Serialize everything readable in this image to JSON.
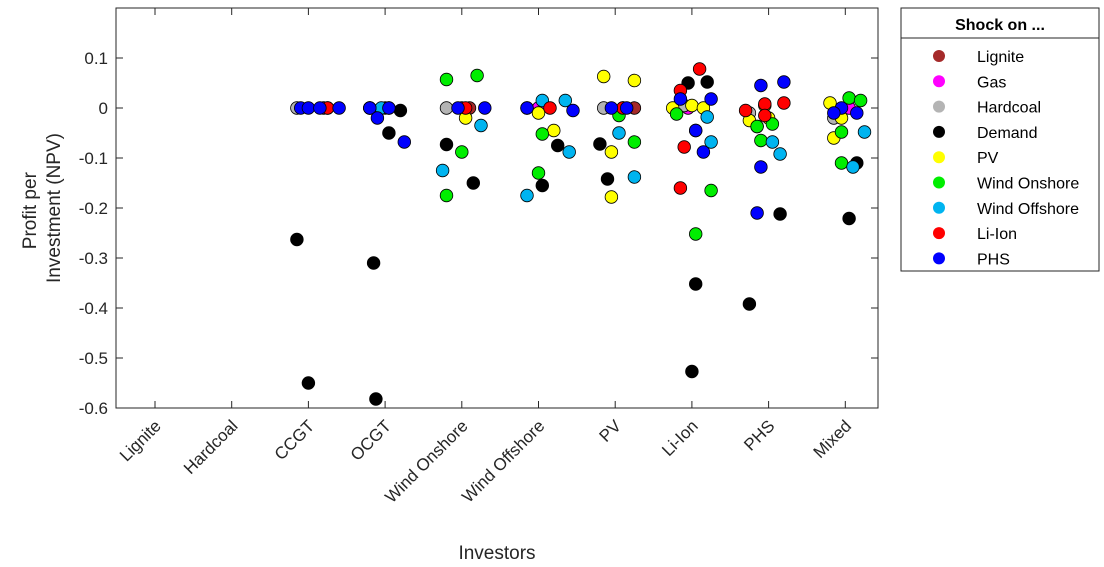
{
  "chart_data": {
    "type": "scatter",
    "xlabel": "Investors",
    "ylabel_lines": [
      "Profit per",
      "Investment (NPV)"
    ],
    "categories": [
      "Lignite",
      "Hardcoal",
      "CCGT",
      "OCGT",
      "Wind Onshore",
      "Wind Offshore",
      "PV",
      "Li-Ion",
      "PHS",
      "Mixed"
    ],
    "ylim": [
      -0.6,
      0.2
    ],
    "yticks": [
      0.1,
      0,
      -0.1,
      -0.2,
      -0.3,
      -0.4,
      -0.5,
      -0.6
    ],
    "ytick_labels": [
      "0.1",
      "0",
      "-0.1",
      "-0.2",
      "-0.3",
      "-0.4",
      "-0.5",
      "-0.6"
    ],
    "grid": false,
    "legend_position": "outside-right",
    "legend": {
      "title": "Shock on ...",
      "entries": [
        {
          "name": "Lignite",
          "color": "#A52A2A"
        },
        {
          "name": "Gas",
          "color": "#FF00FF"
        },
        {
          "name": "Hardcoal",
          "color": "#B4B4B4"
        },
        {
          "name": "Demand",
          "color": "#000000"
        },
        {
          "name": "PV",
          "color": "#FFFF00"
        },
        {
          "name": "Wind Onshore",
          "color": "#00EE00"
        },
        {
          "name": "Wind Offshore",
          "color": "#00B4F0"
        },
        {
          "name": "Li-Ion",
          "color": "#FF0000"
        },
        {
          "name": "PHS",
          "color": "#0000FF"
        }
      ]
    },
    "series": [
      {
        "name": "Lignite",
        "color": "#A52A2A",
        "points": [
          [
            3.25,
            0
          ],
          [
            4.0,
            0
          ],
          [
            5.1,
            0
          ],
          [
            7.25,
            0
          ]
        ]
      },
      {
        "name": "Gas",
        "color": "#FF00FF",
        "points": [
          [
            3.2,
            0
          ],
          [
            5.0,
            0
          ],
          [
            6.0,
            0
          ],
          [
            7.1,
            0
          ],
          [
            7.95,
            0
          ],
          [
            10.05,
            0
          ]
        ]
      },
      {
        "name": "Hardcoal",
        "color": "#B4B4B4",
        "points": [
          [
            2.85,
            0
          ],
          [
            3.8,
            0
          ],
          [
            4.8,
            0
          ],
          [
            5.85,
            0
          ],
          [
            6.85,
            0
          ],
          [
            7.9,
            0.005
          ],
          [
            8.75,
            -0.01
          ],
          [
            9.85,
            -0.02
          ]
        ]
      },
      {
        "name": "Demand",
        "color": "#000000",
        "points": [
          [
            2.85,
            -0.263
          ],
          [
            3.0,
            -0.55
          ],
          [
            3.85,
            -0.31
          ],
          [
            3.88,
            -0.582
          ],
          [
            4.05,
            -0.05
          ],
          [
            4.2,
            -0.005
          ],
          [
            4.8,
            -0.073
          ],
          [
            5.15,
            -0.15
          ],
          [
            6.25,
            -0.075
          ],
          [
            6.05,
            -0.155
          ],
          [
            6.8,
            -0.072
          ],
          [
            6.9,
            -0.142
          ],
          [
            7.95,
            0.05
          ],
          [
            8.2,
            0.052
          ],
          [
            8.05,
            -0.352
          ],
          [
            8.0,
            -0.527
          ],
          [
            8.85,
            -0.037
          ],
          [
            9.15,
            -0.212
          ],
          [
            8.75,
            -0.392
          ],
          [
            10.15,
            -0.11
          ],
          [
            10.05,
            -0.221
          ]
        ]
      },
      {
        "name": "PV",
        "color": "#FFFF00",
        "points": [
          [
            4.05,
            0
          ],
          [
            5.05,
            -0.02
          ],
          [
            6.0,
            -0.01
          ],
          [
            6.2,
            -0.045
          ],
          [
            6.85,
            0.063
          ],
          [
            7.25,
            0.055
          ],
          [
            6.95,
            -0.088
          ],
          [
            6.95,
            -0.178
          ],
          [
            7.75,
            0
          ],
          [
            8.0,
            0.005
          ],
          [
            8.15,
            0
          ],
          [
            8.75,
            -0.025
          ],
          [
            8.95,
            0.005
          ],
          [
            9.0,
            -0.02
          ],
          [
            9.8,
            0.01
          ],
          [
            9.85,
            -0.06
          ],
          [
            9.95,
            -0.02
          ]
        ]
      },
      {
        "name": "Wind Onshore",
        "color": "#00EE00",
        "points": [
          [
            4.8,
            0.057
          ],
          [
            5.2,
            0.065
          ],
          [
            5.0,
            -0.088
          ],
          [
            4.8,
            -0.175
          ],
          [
            6.05,
            -0.052
          ],
          [
            6.0,
            -0.13
          ],
          [
            7.05,
            -0.015
          ],
          [
            7.25,
            -0.068
          ],
          [
            7.8,
            -0.012
          ],
          [
            8.25,
            -0.165
          ],
          [
            8.05,
            -0.252
          ],
          [
            8.9,
            -0.065
          ],
          [
            9.05,
            -0.032
          ],
          [
            8.85,
            -0.037
          ],
          [
            10.05,
            0.02
          ],
          [
            10.2,
            0.015
          ],
          [
            9.95,
            -0.048
          ],
          [
            9.95,
            -0.11
          ]
        ]
      },
      {
        "name": "Wind Offshore",
        "color": "#00B4F0",
        "points": [
          [
            3.95,
            0
          ],
          [
            5.25,
            -0.035
          ],
          [
            4.75,
            -0.125
          ],
          [
            6.05,
            0.015
          ],
          [
            6.35,
            0.015
          ],
          [
            6.4,
            -0.088
          ],
          [
            5.85,
            -0.175
          ],
          [
            7.05,
            -0.05
          ],
          [
            7.25,
            -0.138
          ],
          [
            8.05,
            -0.045
          ],
          [
            8.2,
            -0.018
          ],
          [
            8.25,
            -0.068
          ],
          [
            9.05,
            -0.068
          ],
          [
            9.15,
            -0.092
          ],
          [
            10.1,
            -0.118
          ],
          [
            10.25,
            -0.048
          ]
        ]
      },
      {
        "name": "Li-Ion",
        "color": "#FF0000",
        "points": [
          [
            3.25,
            0
          ],
          [
            3.8,
            0
          ],
          [
            5.05,
            0
          ],
          [
            6.15,
            0
          ],
          [
            7.1,
            0
          ],
          [
            7.85,
            0.035
          ],
          [
            8.1,
            0.078
          ],
          [
            7.9,
            -0.078
          ],
          [
            7.85,
            -0.16
          ],
          [
            8.7,
            -0.005
          ],
          [
            8.95,
            0.008
          ],
          [
            9.2,
            0.01
          ],
          [
            8.95,
            -0.015
          ]
        ]
      },
      {
        "name": "PHS",
        "color": "#0000FF",
        "points": [
          [
            2.9,
            0
          ],
          [
            3.0,
            0
          ],
          [
            3.15,
            0
          ],
          [
            3.4,
            0
          ],
          [
            3.8,
            0
          ],
          [
            3.9,
            -0.02
          ],
          [
            4.05,
            0
          ],
          [
            4.25,
            -0.068
          ],
          [
            4.95,
            0
          ],
          [
            5.3,
            0
          ],
          [
            5.85,
            0
          ],
          [
            6.45,
            -0.005
          ],
          [
            6.95,
            0
          ],
          [
            7.15,
            0
          ],
          [
            7.85,
            0.018
          ],
          [
            8.25,
            0.018
          ],
          [
            8.05,
            -0.045
          ],
          [
            8.15,
            -0.088
          ],
          [
            8.9,
            0.045
          ],
          [
            9.2,
            0.052
          ],
          [
            8.9,
            -0.118
          ],
          [
            8.85,
            -0.21
          ],
          [
            9.95,
            0
          ],
          [
            10.15,
            -0.01
          ],
          [
            9.85,
            -0.01
          ]
        ]
      }
    ]
  }
}
